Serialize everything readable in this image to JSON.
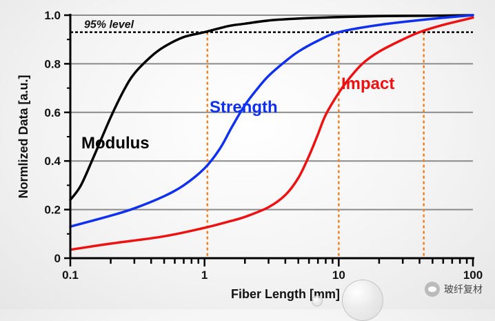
{
  "chart_data": {
    "type": "line",
    "x_scale": "log",
    "xlabel": "Fiber Length [mm]",
    "ylabel": "Normlized Data [a.u.]",
    "xlim": [
      0.1,
      100
    ],
    "ylim": [
      0,
      1.0
    ],
    "x_ticks": [
      {
        "value": 0.1,
        "label": "0.1"
      },
      {
        "value": 1,
        "label": "1"
      },
      {
        "value": 10,
        "label": "10"
      },
      {
        "value": 100,
        "label": "100"
      }
    ],
    "y_ticks": [
      {
        "value": 0,
        "label": "0"
      },
      {
        "value": 0.2,
        "label": "0.2"
      },
      {
        "value": 0.4,
        "label": "0.4"
      },
      {
        "value": 0.6,
        "label": "0.6"
      },
      {
        "value": 0.8,
        "label": "0.8"
      },
      {
        "value": 1.0,
        "label": "1.0"
      }
    ],
    "gridlines_y": [
      0.2,
      0.4,
      0.6,
      0.8,
      1.0
    ],
    "reference_line": {
      "label": "95% level",
      "y": 0.93
    },
    "series": [
      {
        "name": "Modulus",
        "color": "#000000",
        "x": [
          0.1,
          0.12,
          0.15,
          0.2,
          0.25,
          0.3,
          0.4,
          0.5,
          0.7,
          1,
          1.5,
          2,
          3,
          5,
          10,
          20,
          50,
          100
        ],
        "y": [
          0.24,
          0.3,
          0.42,
          0.58,
          0.69,
          0.76,
          0.83,
          0.87,
          0.91,
          0.93,
          0.955,
          0.965,
          0.978,
          0.986,
          0.992,
          0.996,
          0.998,
          1.0
        ]
      },
      {
        "name": "Strength",
        "color": "#1030f0",
        "x": [
          0.1,
          0.2,
          0.3,
          0.5,
          0.7,
          1,
          1.3,
          1.6,
          2,
          2.5,
          3,
          4,
          5,
          7,
          10,
          20,
          50,
          100
        ],
        "y": [
          0.13,
          0.175,
          0.205,
          0.255,
          0.3,
          0.37,
          0.45,
          0.54,
          0.63,
          0.7,
          0.75,
          0.81,
          0.85,
          0.895,
          0.93,
          0.96,
          0.985,
          1.0
        ]
      },
      {
        "name": "Impact",
        "color": "#ee1111",
        "x": [
          0.1,
          0.2,
          0.5,
          1,
          1.5,
          2,
          3,
          4,
          5,
          6,
          7,
          8,
          10,
          12,
          15,
          20,
          30,
          40,
          60,
          100
        ],
        "y": [
          0.035,
          0.06,
          0.09,
          0.125,
          0.15,
          0.17,
          0.21,
          0.26,
          0.33,
          0.42,
          0.51,
          0.59,
          0.68,
          0.74,
          0.8,
          0.85,
          0.9,
          0.93,
          0.96,
          0.99
        ]
      }
    ],
    "vertical_markers": [
      {
        "series": "Modulus",
        "x": 1.05
      },
      {
        "series": "Strength",
        "x": 10
      },
      {
        "series": "Impact",
        "x": 43
      }
    ],
    "marker_color": "#f08020",
    "series_labels": [
      {
        "text": "Modulus",
        "color": "#000000"
      },
      {
        "text": "Strength",
        "color": "#1030f0"
      },
      {
        "text": "Impact",
        "color": "#ee1111"
      }
    ]
  },
  "watermark": {
    "text": "玻纤复材"
  }
}
